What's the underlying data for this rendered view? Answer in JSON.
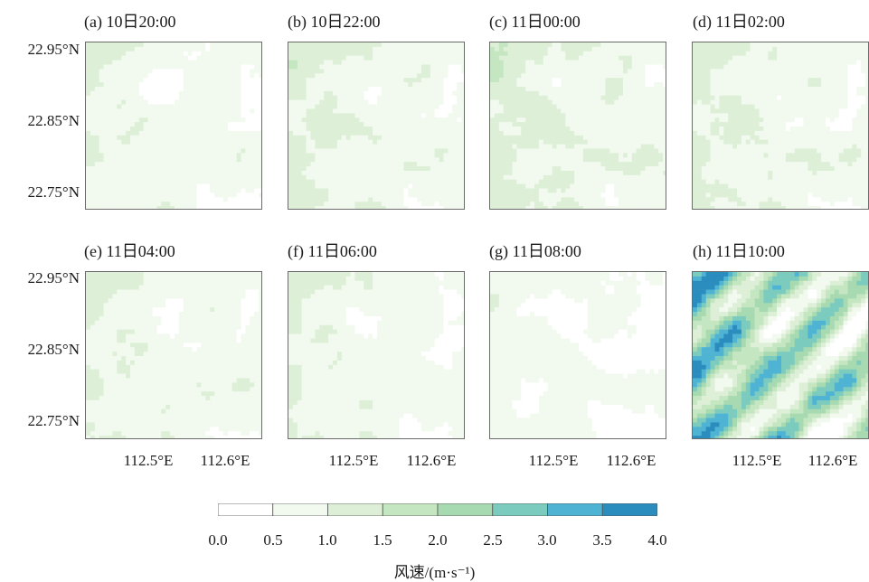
{
  "chart_data": {
    "type": "heatmap",
    "panels": [
      {
        "label": "(a) 10日20:00",
        "mean_wind": 1.0
      },
      {
        "label": "(b) 10日22:00",
        "mean_wind": 1.2
      },
      {
        "label": "(c) 11日00:00",
        "mean_wind": 1.3
      },
      {
        "label": "(d) 11日02:00",
        "mean_wind": 1.2
      },
      {
        "label": "(e) 11日04:00",
        "mean_wind": 1.1
      },
      {
        "label": "(f) 11日06:00",
        "mean_wind": 1.1
      },
      {
        "label": "(g) 11日08:00",
        "mean_wind": 0.8
      },
      {
        "label": "(h) 11日10:00",
        "mean_wind": 2.6
      }
    ],
    "y_ticks": [
      "22.95°N",
      "22.85°N",
      "22.75°N"
    ],
    "x_ticks": [
      "112.5°E",
      "112.6°E"
    ],
    "colorbar": {
      "ticks": [
        "0.0",
        "0.5",
        "1.0",
        "1.5",
        "2.0",
        "2.5",
        "3.0",
        "3.5",
        "4.0"
      ],
      "range": [
        0,
        4
      ],
      "colors": [
        "#ffffff",
        "#f2f9ef",
        "#ddf0d7",
        "#c4e6c0",
        "#a8dab2",
        "#7ccbbf",
        "#4fb3d3",
        "#2b8cbe"
      ],
      "label": "风速/(m·s⁻¹)"
    }
  }
}
